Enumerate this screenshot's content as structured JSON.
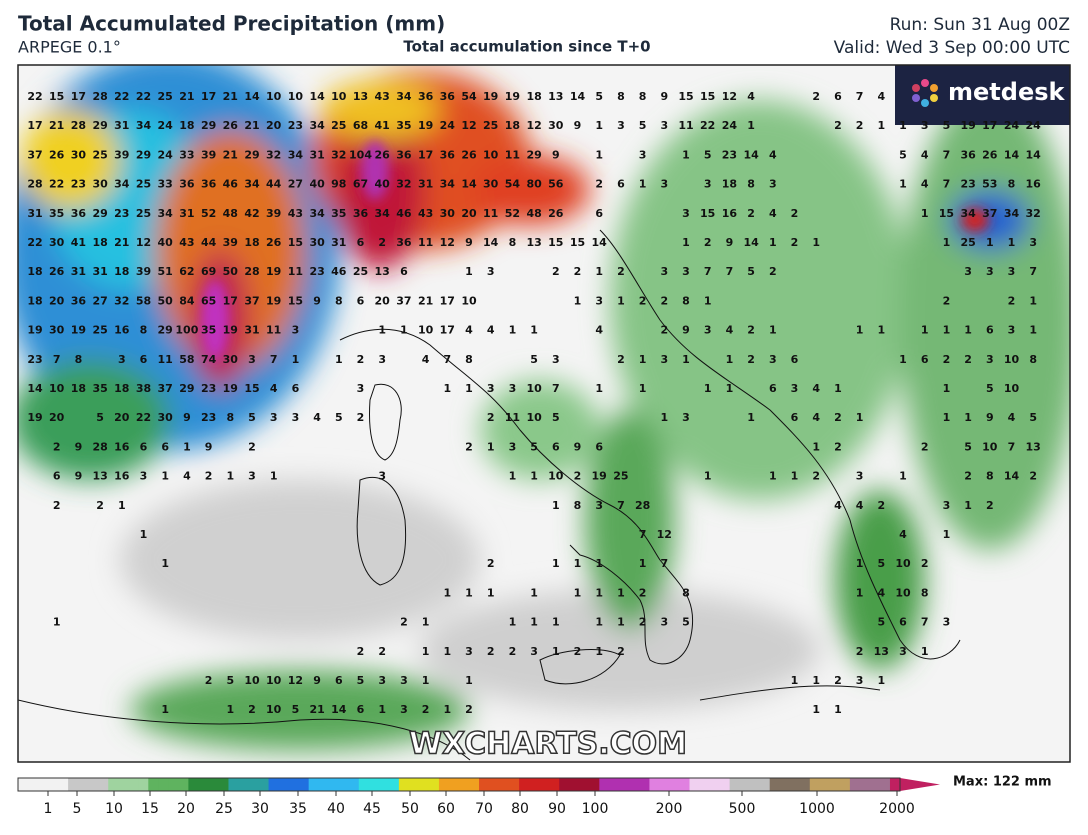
{
  "header": {
    "title": "Total Accumulated Precipitation (mm)",
    "model": "ARPEGE 0.1°",
    "subtitle": "Total accumulation since T+0",
    "run": "Run: Sun 31 Aug 00Z",
    "valid": "Valid: Wed 3 Sep 00:00 UTC"
  },
  "logo": "metdesk",
  "watermark": "WXCHARTS.COM",
  "grid": {
    "rows": [
      [
        22,
        15,
        17,
        28,
        22,
        22,
        25,
        21,
        17,
        21,
        14,
        10,
        10,
        14,
        10,
        13,
        43,
        34,
        36,
        36,
        54,
        19,
        19,
        18,
        13,
        14,
        5,
        8,
        8,
        9,
        15,
        15,
        12,
        4,
        null,
        null,
        2,
        6,
        7,
        4
      ],
      [
        17,
        21,
        28,
        29,
        31,
        34,
        24,
        18,
        29,
        26,
        21,
        20,
        23,
        34,
        25,
        68,
        41,
        35,
        19,
        24,
        12,
        25,
        18,
        12,
        30,
        9,
        1,
        3,
        5,
        3,
        11,
        22,
        24,
        1,
        null,
        null,
        null,
        2,
        2,
        1,
        1,
        3,
        5,
        19,
        17,
        24,
        24
      ],
      [
        37,
        26,
        30,
        25,
        39,
        29,
        24,
        33,
        39,
        21,
        29,
        32,
        34,
        31,
        32,
        104,
        26,
        36,
        17,
        36,
        26,
        10,
        11,
        29,
        9,
        null,
        1,
        null,
        3,
        null,
        1,
        5,
        23,
        14,
        4,
        null,
        null,
        null,
        null,
        null,
        5,
        4,
        7,
        36,
        26,
        14,
        14
      ],
      [
        28,
        22,
        23,
        30,
        34,
        25,
        33,
        36,
        36,
        46,
        34,
        44,
        27,
        40,
        98,
        67,
        40,
        32,
        31,
        34,
        14,
        30,
        54,
        80,
        56,
        null,
        2,
        6,
        1,
        3,
        null,
        3,
        18,
        8,
        3,
        null,
        null,
        null,
        null,
        null,
        1,
        4,
        7,
        23,
        53,
        8,
        16
      ],
      [
        31,
        35,
        36,
        29,
        23,
        25,
        34,
        31,
        52,
        48,
        42,
        39,
        43,
        34,
        35,
        36,
        34,
        46,
        43,
        30,
        20,
        11,
        52,
        48,
        26,
        null,
        6,
        null,
        null,
        null,
        3,
        15,
        16,
        2,
        4,
        2,
        null,
        null,
        null,
        null,
        null,
        1,
        15,
        34,
        37,
        34,
        32
      ],
      [
        22,
        30,
        41,
        18,
        21,
        12,
        40,
        43,
        44,
        39,
        18,
        26,
        15,
        30,
        31,
        6,
        2,
        36,
        11,
        12,
        9,
        14,
        8,
        13,
        15,
        15,
        14,
        null,
        null,
        null,
        1,
        2,
        9,
        14,
        1,
        2,
        1,
        null,
        null,
        null,
        null,
        null,
        1,
        25,
        1,
        1,
        3
      ],
      [
        18,
        26,
        31,
        31,
        18,
        39,
        51,
        62,
        69,
        50,
        28,
        19,
        11,
        23,
        46,
        25,
        13,
        6,
        null,
        null,
        1,
        3,
        null,
        null,
        2,
        2,
        1,
        2,
        null,
        3,
        3,
        7,
        7,
        5,
        2,
        null,
        null,
        null,
        null,
        null,
        null,
        null,
        null,
        3,
        3,
        3,
        7
      ],
      [
        18,
        20,
        36,
        27,
        32,
        58,
        50,
        84,
        65,
        17,
        37,
        19,
        15,
        9,
        8,
        6,
        20,
        37,
        21,
        17,
        10,
        null,
        null,
        null,
        null,
        1,
        3,
        1,
        2,
        2,
        8,
        1,
        null,
        null,
        null,
        null,
        null,
        null,
        null,
        null,
        null,
        null,
        2,
        null,
        null,
        2,
        1
      ],
      [
        19,
        30,
        19,
        25,
        16,
        8,
        29,
        100,
        35,
        19,
        31,
        11,
        3,
        null,
        null,
        null,
        1,
        1,
        10,
        17,
        4,
        4,
        1,
        1,
        null,
        null,
        4,
        null,
        null,
        2,
        9,
        3,
        4,
        2,
        1,
        null,
        null,
        null,
        1,
        1,
        null,
        1,
        1,
        1,
        6,
        3,
        1
      ],
      [
        23,
        7,
        8,
        null,
        3,
        6,
        11,
        58,
        74,
        30,
        3,
        7,
        1,
        null,
        1,
        2,
        3,
        null,
        4,
        7,
        8,
        null,
        null,
        5,
        3,
        null,
        null,
        2,
        1,
        3,
        1,
        null,
        1,
        2,
        3,
        6,
        null,
        null,
        null,
        null,
        1,
        6,
        2,
        2,
        3,
        10,
        8
      ],
      [
        14,
        10,
        18,
        35,
        18,
        38,
        37,
        29,
        23,
        19,
        15,
        4,
        6,
        null,
        null,
        3,
        null,
        null,
        null,
        1,
        1,
        3,
        3,
        10,
        7,
        null,
        1,
        null,
        1,
        null,
        null,
        1,
        1,
        null,
        6,
        3,
        4,
        1,
        null,
        null,
        null,
        null,
        1,
        null,
        5,
        10
      ],
      [
        19,
        20,
        null,
        5,
        20,
        22,
        30,
        9,
        23,
        8,
        5,
        3,
        3,
        4,
        5,
        2,
        null,
        null,
        null,
        null,
        null,
        2,
        11,
        10,
        5,
        null,
        null,
        null,
        null,
        1,
        3,
        null,
        null,
        1,
        null,
        6,
        4,
        2,
        1,
        null,
        null,
        null,
        1,
        1,
        9,
        4,
        5
      ],
      [
        null,
        2,
        9,
        28,
        16,
        6,
        6,
        1,
        9,
        null,
        2,
        null,
        null,
        null,
        null,
        null,
        null,
        null,
        null,
        null,
        2,
        1,
        3,
        5,
        6,
        9,
        6,
        null,
        null,
        null,
        null,
        null,
        null,
        null,
        null,
        null,
        1,
        2,
        null,
        null,
        null,
        2,
        null,
        5,
        10,
        7,
        13
      ],
      [
        null,
        6,
        9,
        13,
        16,
        3,
        1,
        4,
        2,
        1,
        3,
        1,
        null,
        null,
        null,
        null,
        3,
        null,
        null,
        null,
        null,
        null,
        1,
        1,
        10,
        2,
        19,
        25,
        null,
        null,
        null,
        1,
        null,
        null,
        1,
        1,
        2,
        null,
        3,
        null,
        1,
        null,
        null,
        2,
        8,
        14,
        2
      ],
      [
        null,
        2,
        null,
        2,
        1,
        null,
        null,
        null,
        null,
        null,
        null,
        null,
        null,
        null,
        null,
        null,
        null,
        null,
        null,
        null,
        null,
        null,
        null,
        null,
        1,
        8,
        3,
        7,
        28,
        null,
        null,
        null,
        null,
        null,
        null,
        null,
        null,
        4,
        4,
        2,
        null,
        null,
        3,
        1,
        2
      ],
      [
        null,
        null,
        null,
        null,
        null,
        1,
        null,
        null,
        null,
        null,
        null,
        null,
        null,
        null,
        null,
        null,
        null,
        null,
        null,
        null,
        null,
        null,
        null,
        null,
        null,
        null,
        null,
        null,
        7,
        12,
        null,
        null,
        null,
        null,
        null,
        null,
        null,
        null,
        null,
        null,
        4,
        null,
        1
      ],
      [
        null,
        null,
        null,
        null,
        null,
        null,
        1,
        null,
        null,
        null,
        null,
        null,
        null,
        null,
        null,
        null,
        null,
        null,
        null,
        null,
        null,
        2,
        null,
        null,
        1,
        1,
        1,
        null,
        1,
        7,
        null,
        null,
        null,
        null,
        null,
        null,
        null,
        null,
        1,
        5,
        10,
        2
      ],
      [
        null,
        null,
        null,
        null,
        null,
        null,
        null,
        null,
        null,
        null,
        null,
        null,
        null,
        null,
        null,
        null,
        null,
        null,
        null,
        1,
        1,
        1,
        null,
        1,
        null,
        1,
        1,
        1,
        2,
        null,
        8,
        null,
        null,
        null,
        null,
        null,
        null,
        null,
        1,
        4,
        10,
        8
      ],
      [
        null,
        1,
        null,
        null,
        null,
        null,
        null,
        null,
        null,
        null,
        null,
        null,
        null,
        null,
        null,
        null,
        null,
        2,
        1,
        null,
        null,
        null,
        1,
        1,
        1,
        null,
        1,
        1,
        2,
        3,
        5,
        null,
        null,
        null,
        null,
        null,
        null,
        null,
        null,
        5,
        6,
        7,
        3
      ],
      [
        null,
        null,
        null,
        null,
        null,
        null,
        null,
        null,
        null,
        null,
        null,
        null,
        null,
        null,
        null,
        2,
        2,
        null,
        1,
        1,
        3,
        2,
        2,
        3,
        1,
        2,
        1,
        2,
        null,
        null,
        null,
        null,
        null,
        null,
        null,
        null,
        null,
        null,
        2,
        13,
        3,
        1
      ],
      [
        null,
        null,
        null,
        null,
        null,
        null,
        null,
        null,
        2,
        5,
        10,
        10,
        12,
        9,
        6,
        5,
        3,
        3,
        1,
        null,
        1,
        null,
        null,
        null,
        null,
        null,
        null,
        null,
        null,
        null,
        null,
        null,
        null,
        null,
        null,
        1,
        1,
        2,
        3,
        1
      ],
      [
        null,
        null,
        null,
        null,
        null,
        null,
        1,
        null,
        null,
        1,
        2,
        10,
        5,
        21,
        14,
        6,
        1,
        3,
        2,
        1,
        2,
        null,
        null,
        null,
        null,
        null,
        null,
        null,
        null,
        null,
        null,
        null,
        null,
        null,
        null,
        null,
        1,
        1
      ]
    ]
  },
  "colorbar": {
    "ticks": [
      1,
      5,
      10,
      15,
      20,
      25,
      30,
      35,
      40,
      45,
      50,
      60,
      70,
      80,
      90,
      100,
      200,
      500,
      1000,
      2000
    ],
    "max_label": "Max: 122 mm"
  }
}
